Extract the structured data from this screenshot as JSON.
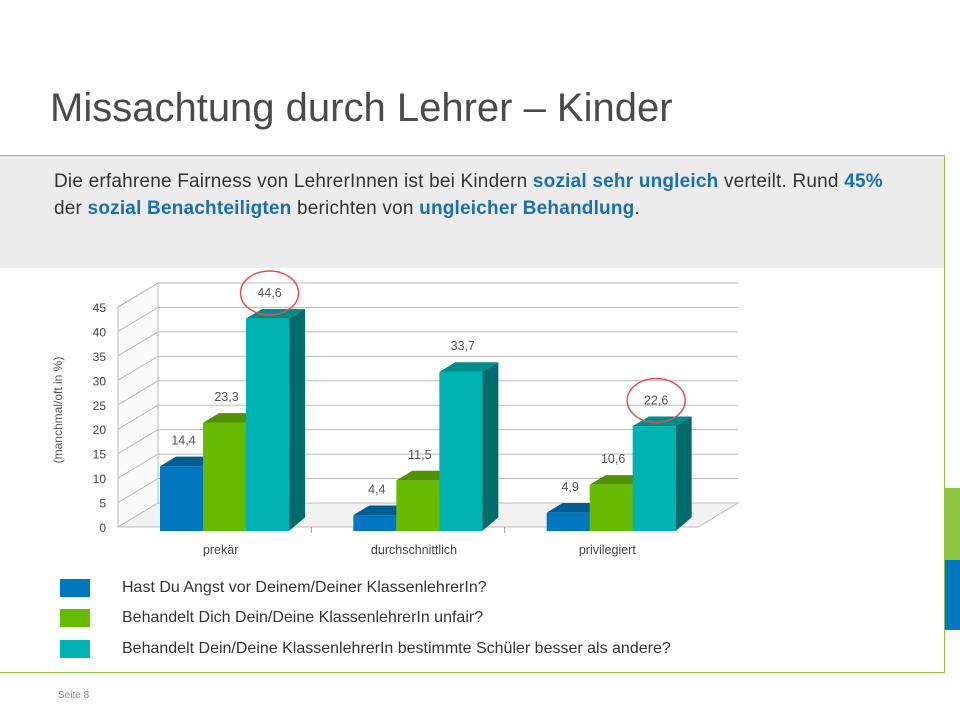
{
  "slide": {
    "title": "Missachtung durch Lehrer – Kinder",
    "footer": "Seite 8"
  },
  "intro": {
    "t1": "Die erfahrene Fairness von LehrerInnen ist bei Kindern ",
    "h1": "sozial sehr ungleich",
    "t2": " verteilt. Rund ",
    "h2": "45%",
    "t3": " der ",
    "h3": "sozial Benachteiligten",
    "t4": " berichten von ",
    "h4": "ungleicher Behandlung",
    "t5": "."
  },
  "colors": {
    "accent_blue": "#1a6fb0",
    "frame_green": "#8dc63f",
    "highlight_circle": "#e05252"
  },
  "chart_data": {
    "type": "bar",
    "categories": [
      "prekär",
      "durchschnittlich",
      "privilegiert"
    ],
    "ylabel": "(manchmal/oft in %)",
    "ylim": [
      0,
      45
    ],
    "yticks": [
      0,
      5,
      10,
      15,
      20,
      25,
      30,
      35,
      40,
      45
    ],
    "grid": true,
    "series": [
      {
        "name": "Hast Du Angst vor Deinem/Deiner KlassenlehrerIn?",
        "color": "#0077be",
        "values": [
          14.4,
          4.4,
          4.9
        ],
        "labels": [
          "14,4",
          "4,4",
          "4,9"
        ]
      },
      {
        "name": "Behandelt Dich Dein/Deine KlassenlehrerIn unfair?",
        "color": "#66bb00",
        "values": [
          23.3,
          11.5,
          10.6
        ],
        "labels": [
          "23,3",
          "11,5",
          "10,6"
        ]
      },
      {
        "name": "Behandelt Dein/Deine KlassenlehrerIn bestimmte Schüler besser als andere?",
        "color": "#00b3b3",
        "values": [
          44.6,
          33.7,
          22.6
        ],
        "labels": [
          "44,6",
          "33,7",
          "22,6"
        ]
      }
    ],
    "highlighted": [
      "44,6",
      "22,6"
    ]
  }
}
